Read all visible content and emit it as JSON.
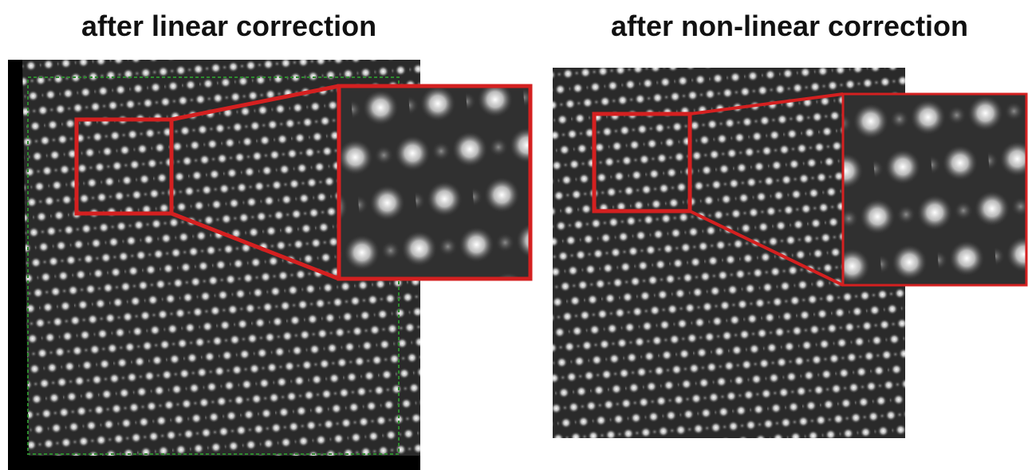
{
  "panels": [
    {
      "title": "after linear correction"
    },
    {
      "title": "after non-linear correction"
    }
  ]
}
